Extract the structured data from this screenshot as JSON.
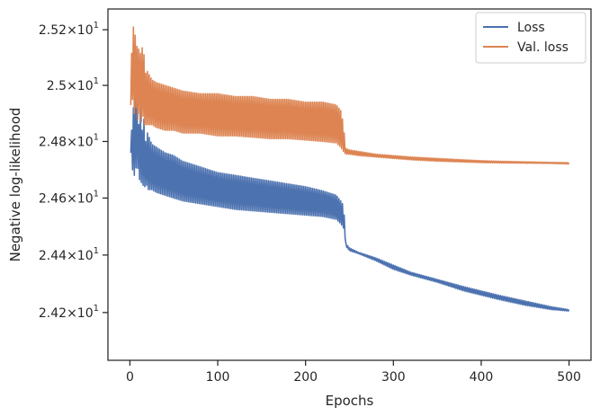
{
  "chart_data": {
    "type": "line",
    "xlabel": "Epochs",
    "ylabel": "Negative log-likelihood",
    "xlim": [
      -25,
      525
    ],
    "ylim": [
      24.035,
      25.275
    ],
    "x_ticks": [
      {
        "value": 0,
        "label": "0"
      },
      {
        "value": 100,
        "label": "100"
      },
      {
        "value": 200,
        "label": "200"
      },
      {
        "value": 300,
        "label": "300"
      },
      {
        "value": 400,
        "label": "400"
      },
      {
        "value": 500,
        "label": "500"
      }
    ],
    "y_ticks": [
      {
        "value": 24.2,
        "mantissa": "2.42",
        "cross": "×",
        "base": "10",
        "exp": "1"
      },
      {
        "value": 24.4,
        "mantissa": "2.44",
        "cross": "×",
        "base": "10",
        "exp": "1"
      },
      {
        "value": 24.6,
        "mantissa": "2.46",
        "cross": "×",
        "base": "10",
        "exp": "1"
      },
      {
        "value": 24.8,
        "mantissa": "2.48",
        "cross": "×",
        "base": "10",
        "exp": "1"
      },
      {
        "value": 25.0,
        "mantissa": "2.5",
        "cross": "×",
        "base": "10",
        "exp": "1"
      },
      {
        "value": 25.2,
        "mantissa": "2.52",
        "cross": "×",
        "base": "10",
        "exp": "1"
      }
    ],
    "log_scale_y": true,
    "grid": false,
    "legend_position": "top-right",
    "series": [
      {
        "name": "Loss",
        "color": "#4c72b0",
        "x": [
          1,
          3,
          5,
          8,
          10,
          12,
          14,
          16,
          18,
          20,
          25,
          30,
          40,
          50,
          60,
          80,
          100,
          120,
          140,
          160,
          180,
          200,
          220,
          235,
          240,
          242,
          244,
          246,
          250,
          260,
          280,
          300,
          320,
          350,
          380,
          400,
          420,
          450,
          480,
          500
        ],
        "y_low": [
          24.76,
          24.7,
          24.68,
          24.72,
          24.69,
          24.64,
          24.67,
          24.62,
          24.66,
          24.63,
          24.63,
          24.62,
          24.61,
          24.6,
          24.59,
          24.58,
          24.57,
          24.56,
          24.555,
          24.55,
          24.545,
          24.54,
          24.535,
          24.525,
          24.51,
          24.5,
          24.49,
          24.43,
          24.415,
          24.405,
          24.38,
          24.35,
          24.33,
          24.305,
          24.275,
          24.26,
          24.245,
          24.225,
          24.21,
          24.205
        ],
        "y_high": [
          24.78,
          24.9,
          24.94,
          24.98,
          24.86,
          24.92,
          24.84,
          24.88,
          24.8,
          24.83,
          24.79,
          24.78,
          24.76,
          24.75,
          24.73,
          24.71,
          24.69,
          24.68,
          24.67,
          24.66,
          24.65,
          24.64,
          24.625,
          24.61,
          24.59,
          24.58,
          24.54,
          24.44,
          24.425,
          24.41,
          24.39,
          24.365,
          24.34,
          24.315,
          24.29,
          24.275,
          24.26,
          24.24,
          24.22,
          24.21
        ]
      },
      {
        "name": "Val. loss",
        "color": "#dd8452",
        "x": [
          1,
          3,
          5,
          7,
          9,
          11,
          13,
          15,
          17,
          20,
          25,
          30,
          40,
          50,
          60,
          80,
          100,
          120,
          140,
          160,
          180,
          200,
          220,
          235,
          240,
          242,
          244,
          246,
          250,
          260,
          280,
          300,
          320,
          350,
          380,
          400,
          420,
          450,
          480,
          500
        ],
        "y_low": [
          24.93,
          24.95,
          24.9,
          24.92,
          24.88,
          24.9,
          24.87,
          24.89,
          24.86,
          24.86,
          24.86,
          24.85,
          24.84,
          24.84,
          24.83,
          24.83,
          24.82,
          24.82,
          24.815,
          24.81,
          24.81,
          24.805,
          24.8,
          24.795,
          24.78,
          24.77,
          24.76,
          24.755,
          24.755,
          24.75,
          24.745,
          24.74,
          24.735,
          24.73,
          24.727,
          24.725,
          24.724,
          24.723,
          24.722,
          24.72
        ],
        "y_high": [
          25.01,
          25.22,
          25.2,
          25.16,
          25.12,
          25.14,
          25.09,
          25.18,
          25.04,
          25.05,
          25.02,
          25.01,
          25.0,
          24.99,
          24.98,
          24.97,
          24.97,
          24.96,
          24.96,
          24.95,
          24.95,
          24.94,
          24.94,
          24.93,
          24.91,
          24.88,
          24.83,
          24.775,
          24.77,
          24.765,
          24.755,
          24.75,
          24.745,
          24.74,
          24.735,
          24.732,
          24.73,
          24.728,
          24.726,
          24.725
        ]
      }
    ]
  }
}
